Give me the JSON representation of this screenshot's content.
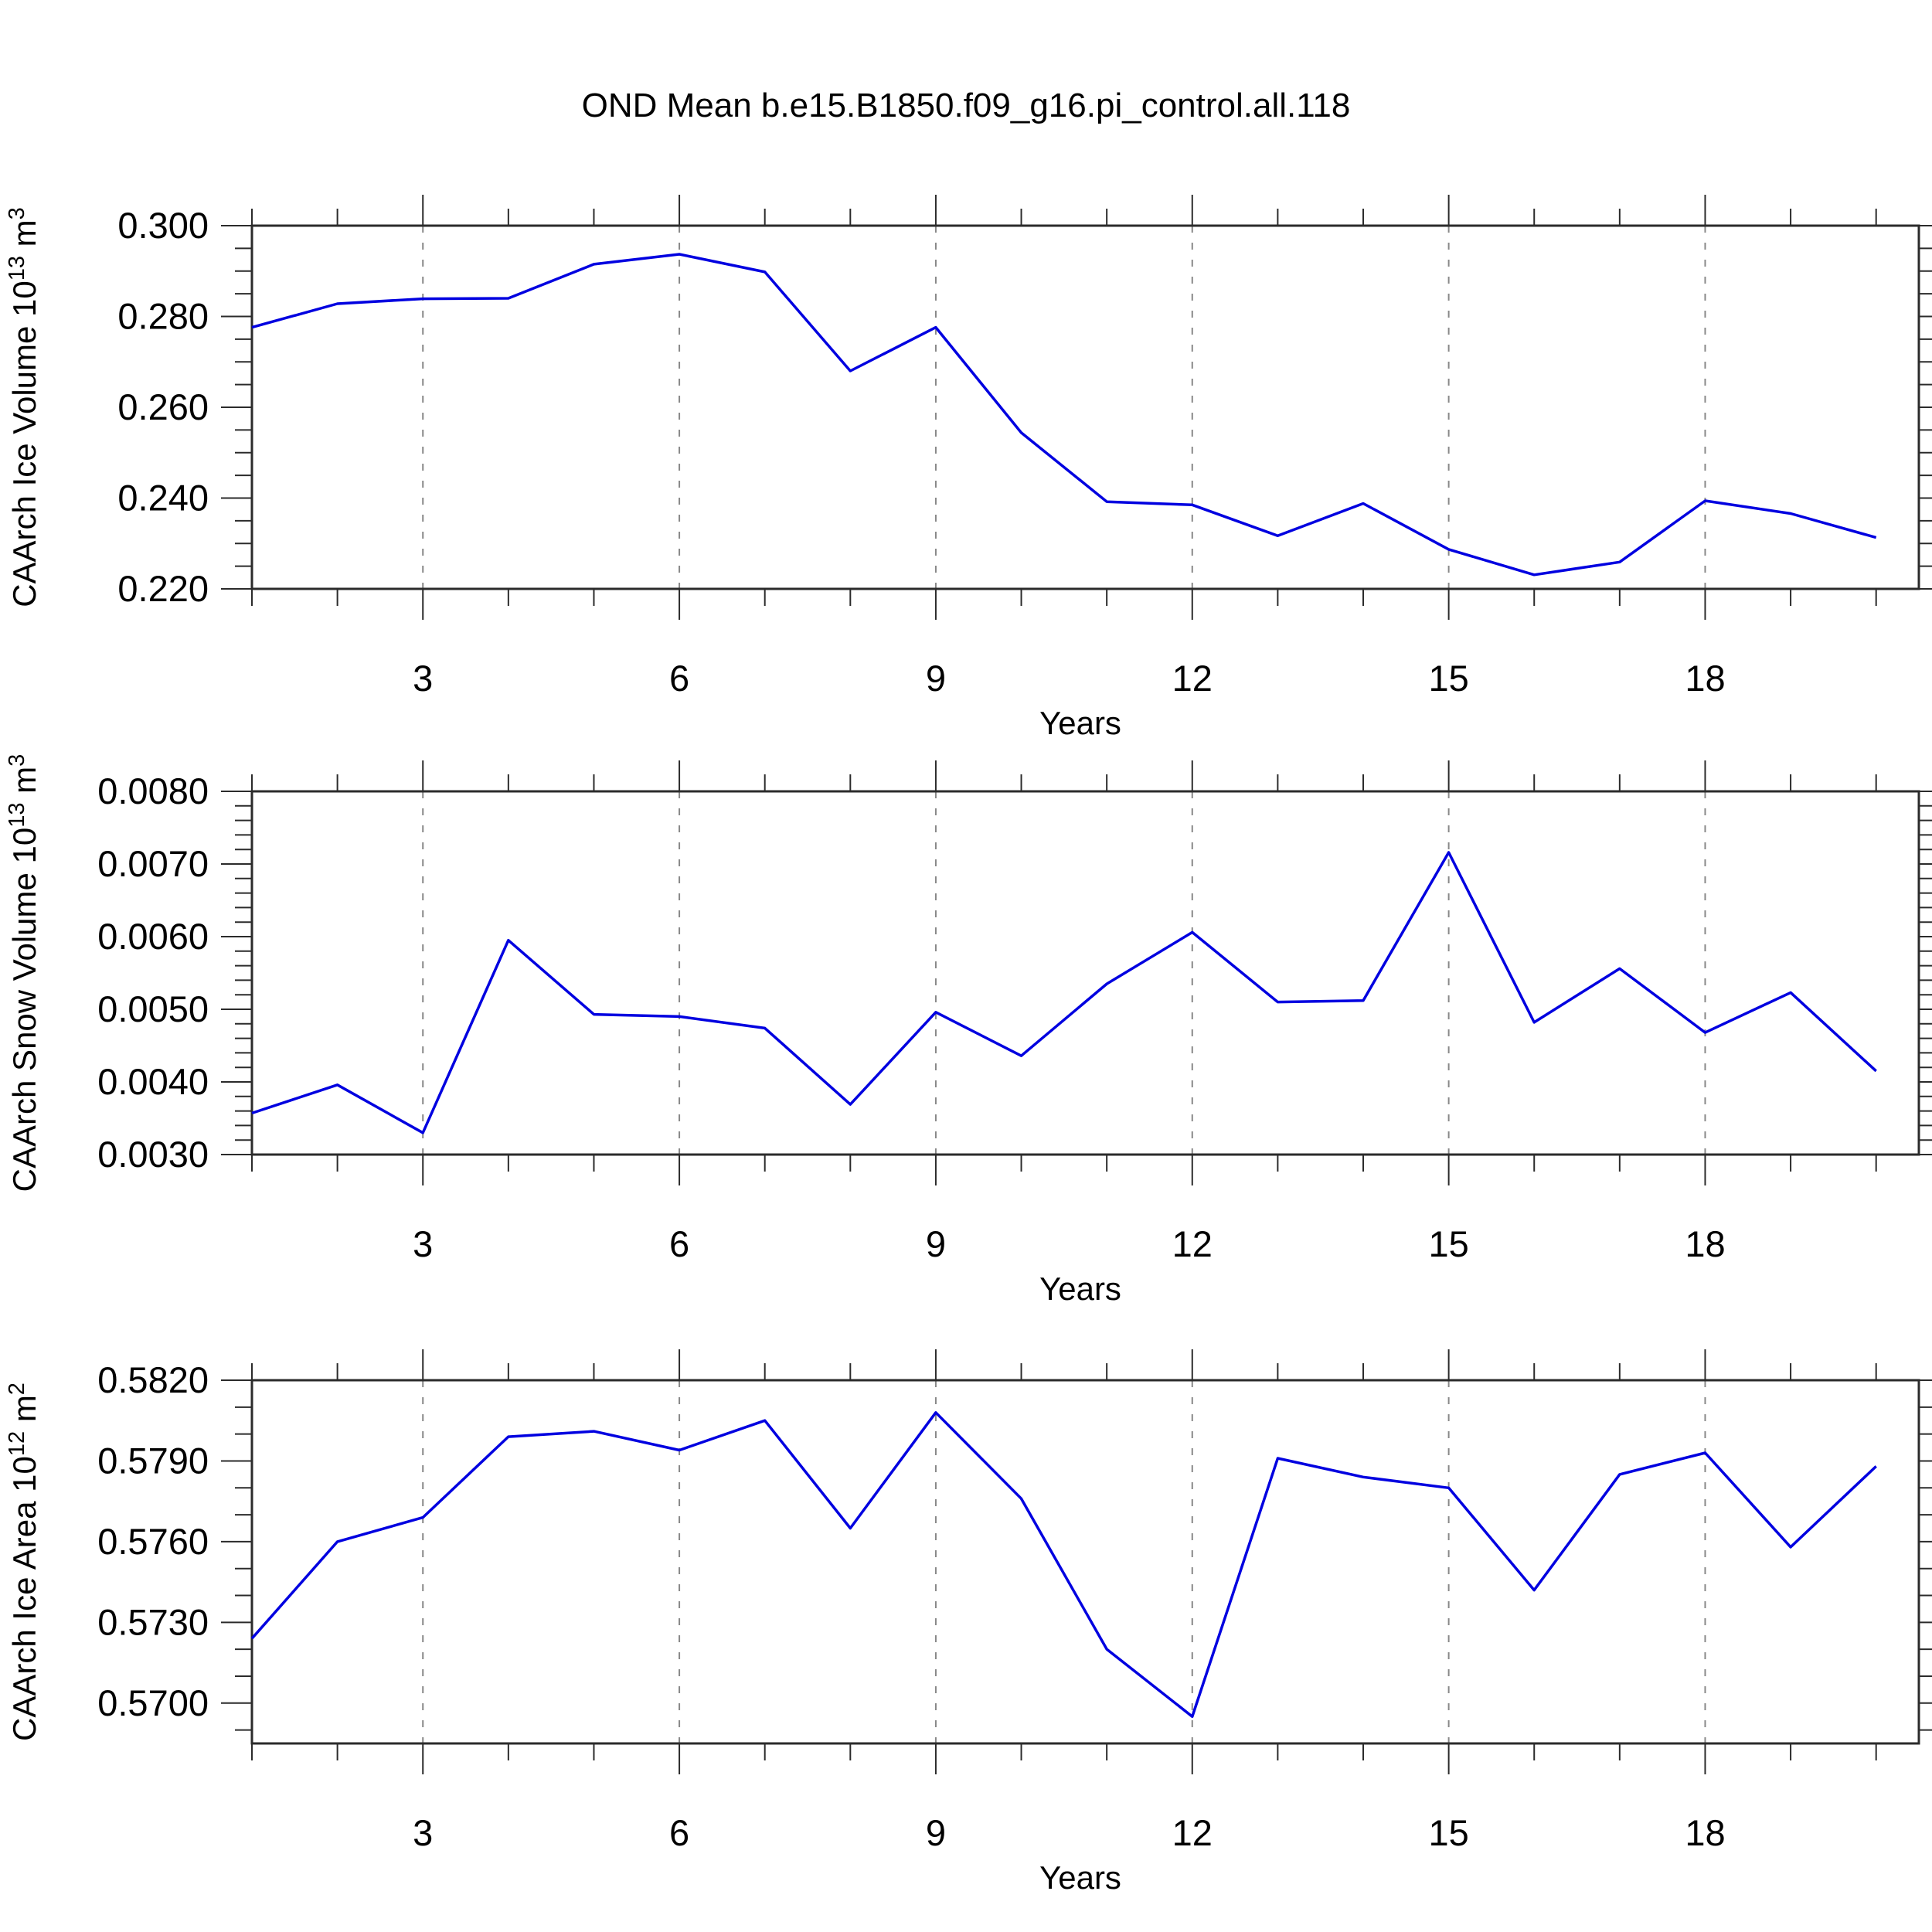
{
  "title": "OND Mean b.e15.B1850.f09_g16.pi_control.all.118",
  "colors": {
    "line": "#0000e0",
    "grid": "#888888",
    "frame": "#2b2b2b",
    "tick": "#2b2b2b",
    "text": "#000000"
  },
  "chart_data": [
    {
      "type": "line",
      "name": "caarch-ice-volume",
      "ylabel_main": "CAArch Ice Volume 10",
      "ylabel_exp1": "13",
      "ylabel_mid": " m",
      "ylabel_exp2": "3",
      "xlabel": "Years",
      "x": [
        1,
        2,
        3,
        4,
        5,
        6,
        7,
        8,
        9,
        10,
        11,
        12,
        13,
        14,
        15,
        16,
        17,
        18,
        19,
        20
      ],
      "values": [
        0.2776,
        0.2828,
        0.2839,
        0.284,
        0.2915,
        0.2937,
        0.2898,
        0.268,
        0.2776,
        0.2544,
        0.2392,
        0.2385,
        0.2317,
        0.2388,
        0.2287,
        0.2231,
        0.2259,
        0.2394,
        0.2366,
        0.2313
      ],
      "xlim": [
        1,
        20.5
      ],
      "ylim": [
        0.22,
        0.3
      ],
      "xticks": [
        3,
        6,
        9,
        12,
        15,
        18
      ],
      "xtick_labels": [
        "3",
        "6",
        "9",
        "12",
        "15",
        "18"
      ],
      "x_minor_step": 1,
      "yticks": [
        0.3,
        0.28,
        0.26,
        0.24,
        0.22
      ],
      "ytick_labels": [
        "0.300",
        "0.280",
        "0.260",
        "0.240",
        "0.220"
      ],
      "y_minor_step": 0.005,
      "grid": "vertical dashed at labeled years"
    },
    {
      "type": "line",
      "name": "caarch-snow-volume",
      "ylabel_main": "CAArch Snow Volume 10",
      "ylabel_exp1": "13",
      "ylabel_mid": " m",
      "ylabel_exp2": "3",
      "xlabel": "Years",
      "x": [
        1,
        2,
        3,
        4,
        5,
        6,
        7,
        8,
        9,
        10,
        11,
        12,
        13,
        14,
        15,
        16,
        17,
        18,
        19,
        20
      ],
      "values": [
        0.00357,
        0.00396,
        0.0033,
        0.00595,
        0.00493,
        0.0049,
        0.00474,
        0.00369,
        0.00496,
        0.00436,
        0.00535,
        0.00606,
        0.0051,
        0.00512,
        0.00716,
        0.00482,
        0.00556,
        0.00468,
        0.00523,
        0.00415
      ],
      "xlim": [
        1,
        20.5
      ],
      "ylim": [
        0.003,
        0.008
      ],
      "xticks": [
        3,
        6,
        9,
        12,
        15,
        18
      ],
      "xtick_labels": [
        "3",
        "6",
        "9",
        "12",
        "15",
        "18"
      ],
      "x_minor_step": 1,
      "yticks": [
        0.008,
        0.007,
        0.006,
        0.005,
        0.004,
        0.003
      ],
      "ytick_labels": [
        "0.0080",
        "0.0070",
        "0.0060",
        "0.0050",
        "0.0040",
        "0.0030"
      ],
      "y_minor_step": 0.0002,
      "grid": "vertical dashed at labeled years"
    },
    {
      "type": "line",
      "name": "caarch-ice-area",
      "ylabel_main": "CAArch Ice Area 10",
      "ylabel_exp1": "12",
      "ylabel_mid": " m",
      "ylabel_exp2": "2",
      "xlabel": "Years",
      "x": [
        1,
        2,
        3,
        4,
        5,
        6,
        7,
        8,
        9,
        10,
        11,
        12,
        13,
        14,
        15,
        16,
        17,
        18,
        19,
        20
      ],
      "values": [
        0.5724,
        0.576,
        0.5769,
        0.5799,
        0.5801,
        0.5794,
        0.5805,
        0.5765,
        0.5808,
        0.5776,
        0.572,
        0.5695,
        0.5791,
        0.5784,
        0.578,
        0.5742,
        0.5785,
        0.5793,
        0.5758,
        0.5788
      ],
      "xlim": [
        1,
        20.5
      ],
      "ylim": [
        0.5685,
        0.582
      ],
      "xticks": [
        3,
        6,
        9,
        12,
        15,
        18
      ],
      "xtick_labels": [
        "3",
        "6",
        "9",
        "12",
        "15",
        "18"
      ],
      "x_minor_step": 1,
      "yticks": [
        0.582,
        0.579,
        0.576,
        0.573,
        0.57
      ],
      "ytick_labels": [
        "0.5820",
        "0.5790",
        "0.5760",
        "0.5730",
        "0.5700"
      ],
      "y_minor_step": 0.001,
      "grid": "vertical dashed at labeled years"
    }
  ]
}
